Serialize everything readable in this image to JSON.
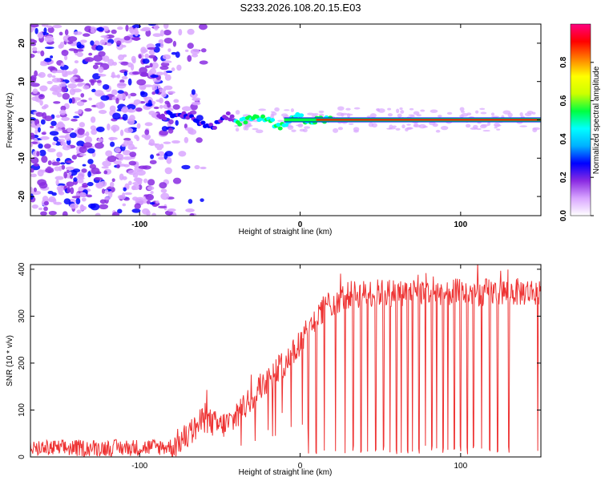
{
  "title": "S233.2026.108.20.15.E03",
  "chart_data": [
    {
      "type": "heatmap",
      "name": "spectrogram",
      "xlabel": "Height of straight line (km)",
      "ylabel": "Frequency (Hz)",
      "xlim": [
        -168,
        150
      ],
      "ylim": [
        -25,
        25
      ],
      "xticks": [
        -100,
        0,
        100
      ],
      "yticks": [
        -20,
        -10,
        0,
        10,
        20
      ],
      "colorbar": {
        "label": "Normalized spectral amplitude",
        "range": [
          0,
          1
        ],
        "ticks": [
          0.0,
          0.2,
          0.4,
          0.6,
          0.8
        ],
        "colors": [
          "#ffffff",
          "#d9a6ff",
          "#8a2be2",
          "#0000ff",
          "#00b0ff",
          "#00ffff",
          "#00ff40",
          "#ccff00",
          "#ffff00",
          "#ff8000",
          "#ff0000",
          "#ff0080"
        ]
      },
      "trace": {
        "x": [
          -85,
          -75,
          -65,
          -55,
          -45,
          -38,
          -30,
          -20,
          -12,
          -5,
          0,
          5,
          10,
          20,
          150
        ],
        "y": [
          1,
          2,
          0,
          -2,
          1,
          -1,
          1,
          0,
          -2,
          1,
          1,
          -1,
          0,
          0,
          0
        ]
      },
      "noise_region_end_x": -80
    },
    {
      "type": "line",
      "name": "snr",
      "xlabel": "Height of straight line (km)",
      "ylabel": "SNR (10 * v/v)",
      "xlim": [
        -168,
        150
      ],
      "ylim": [
        0,
        410
      ],
      "xticks": [
        -100,
        0,
        100
      ],
      "yticks": [
        0,
        100,
        200,
        300,
        400
      ],
      "color": "#ee3333",
      "envelope": {
        "x": [
          -168,
          -100,
          -80,
          -70,
          -60,
          -50,
          -40,
          -30,
          -20,
          -10,
          0,
          5,
          10,
          20,
          30,
          50,
          80,
          100,
          150
        ],
        "y": [
          18,
          20,
          22,
          45,
          80,
          65,
          80,
          130,
          165,
          200,
          240,
          270,
          300,
          330,
          345,
          350,
          352,
          350,
          352
        ]
      },
      "noise_amplitude": 30,
      "dropouts_x": [
        -165,
        -162,
        5,
        10,
        15,
        22,
        28,
        33,
        38,
        42,
        47,
        52,
        56,
        60,
        63,
        67,
        70,
        74,
        78,
        82,
        85,
        89,
        92,
        96,
        100,
        104,
        108,
        113,
        118,
        123,
        130,
        148
      ]
    }
  ]
}
